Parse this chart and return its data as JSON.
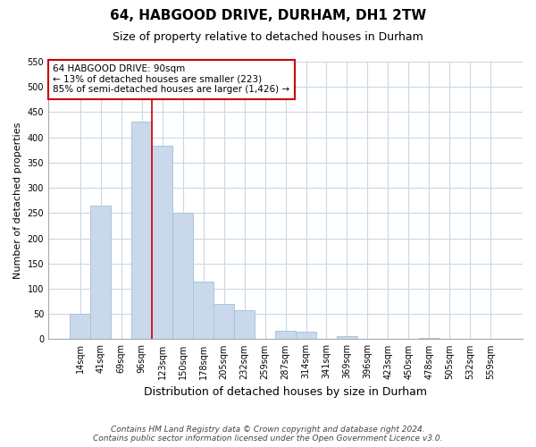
{
  "title": "64, HABGOOD DRIVE, DURHAM, DH1 2TW",
  "subtitle": "Size of property relative to detached houses in Durham",
  "xlabel": "Distribution of detached houses by size in Durham",
  "ylabel": "Number of detached properties",
  "bar_labels": [
    "14sqm",
    "41sqm",
    "69sqm",
    "96sqm",
    "123sqm",
    "150sqm",
    "178sqm",
    "205sqm",
    "232sqm",
    "259sqm",
    "287sqm",
    "314sqm",
    "341sqm",
    "369sqm",
    "396sqm",
    "423sqm",
    "450sqm",
    "478sqm",
    "505sqm",
    "532sqm",
    "559sqm"
  ],
  "bar_heights": [
    50,
    265,
    0,
    432,
    383,
    250,
    115,
    70,
    58,
    0,
    17,
    15,
    0,
    6,
    0,
    0,
    0,
    3,
    0,
    0,
    0
  ],
  "bar_color": "#c9d9eb",
  "bar_edge_color": "#a8c4dc",
  "vline_color": "#cc0000",
  "vline_pos": 3,
  "ylim": [
    0,
    550
  ],
  "yticks": [
    0,
    50,
    100,
    150,
    200,
    250,
    300,
    350,
    400,
    450,
    500,
    550
  ],
  "annotation_title": "64 HABGOOD DRIVE: 90sqm",
  "annotation_line1": "← 13% of detached houses are smaller (223)",
  "annotation_line2": "85% of semi-detached houses are larger (1,426) →",
  "annotation_box_color": "#ffffff",
  "annotation_box_edge": "#cc0000",
  "footer1": "Contains HM Land Registry data © Crown copyright and database right 2024.",
  "footer2": "Contains public sector information licensed under the Open Government Licence v3.0.",
  "bg_color": "#ffffff",
  "grid_color": "#c8d8e8"
}
